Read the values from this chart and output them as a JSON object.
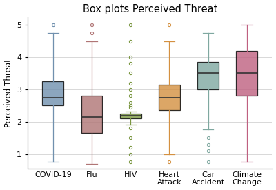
{
  "title": "Box plots Perceived Threat",
  "ylabel": "Perceived Threat",
  "categories": [
    "COVID-19",
    "Flu",
    "HIV",
    "Heart\nAttack",
    "Car\nAccident",
    "Climate\nChange"
  ],
  "ylim": [
    0.55,
    5.25
  ],
  "yticks": [
    1,
    2,
    3,
    4,
    5
  ],
  "boxes": [
    {
      "label": "COVID-19",
      "q1": 2.5,
      "median": 2.75,
      "q3": 3.25,
      "whislo": 0.75,
      "whishi": 4.75,
      "fliers_above": [
        5.0
      ],
      "fliers_below": [],
      "color": "#7090ae"
    },
    {
      "label": "Flu",
      "q1": 1.65,
      "median": 2.15,
      "q3": 2.8,
      "whislo": 0.7,
      "whishi": 4.5,
      "fliers_above": [
        5.0,
        4.75
      ],
      "fliers_below": [],
      "color": "#b07575"
    },
    {
      "label": "HIV",
      "q1": 2.1,
      "median": 2.18,
      "q3": 2.25,
      "whislo": 1.9,
      "whishi": 2.32,
      "fliers_above": [
        5.0,
        4.5,
        4.0,
        3.8,
        3.5,
        3.2,
        3.0,
        2.8,
        2.6,
        2.5,
        2.45
      ],
      "fliers_below": [
        1.8,
        1.5,
        1.2,
        1.0,
        0.75
      ],
      "color": "#7a9640"
    },
    {
      "label": "Heart\nAttack",
      "q1": 2.35,
      "median": 2.75,
      "q3": 3.15,
      "whislo": 1.0,
      "whishi": 4.5,
      "fliers_above": [
        5.0
      ],
      "fliers_below": [
        0.75
      ],
      "color": "#d49040"
    },
    {
      "label": "Car\nAccident",
      "q1": 3.0,
      "median": 3.5,
      "q3": 3.85,
      "whislo": 1.75,
      "whishi": 4.75,
      "fliers_above": [],
      "fliers_below": [
        1.5,
        1.3,
        1.1,
        0.75
      ],
      "color": "#7fa8a0"
    },
    {
      "label": "Climate\nChange",
      "q1": 2.8,
      "median": 3.5,
      "q3": 4.2,
      "whislo": 0.75,
      "whishi": 5.0,
      "fliers_above": [],
      "fliers_below": [],
      "color": "#bf6080"
    }
  ],
  "background_color": "#ffffff",
  "grid_color": "#d8d8d8",
  "title_fontsize": 10.5,
  "label_fontsize": 8.5,
  "tick_fontsize": 8
}
